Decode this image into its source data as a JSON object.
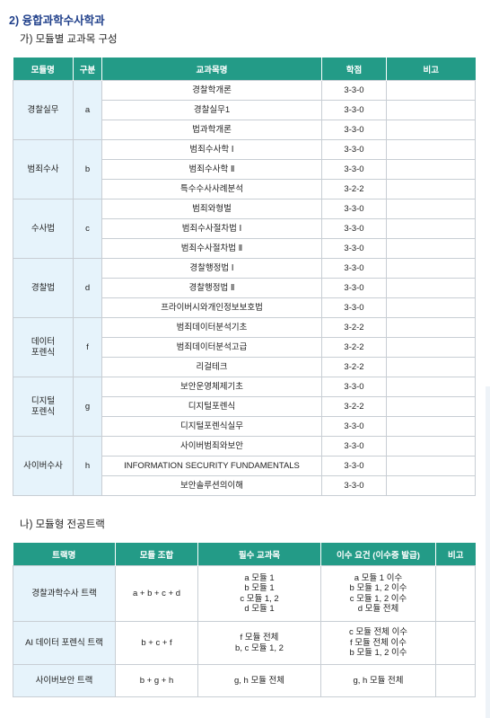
{
  "section_title": "2) 융합과학수사학과",
  "part_a": {
    "title": "가) 모듈별 교과목 구성",
    "headers": [
      "모듈명",
      "구분",
      "교과목명",
      "학점",
      "비고"
    ],
    "modules": [
      {
        "name": "경찰실무",
        "code": "a",
        "courses": [
          {
            "title": "경찰학개론",
            "credit": "3-3-0"
          },
          {
            "title": "경찰실무1",
            "credit": "3-3-0"
          },
          {
            "title": "법과학개론",
            "credit": "3-3-0"
          }
        ]
      },
      {
        "name": "범죄수사",
        "code": "b",
        "courses": [
          {
            "title": "범죄수사학 Ⅰ",
            "credit": "3-3-0"
          },
          {
            "title": "범죄수사학 Ⅱ",
            "credit": "3-3-0"
          },
          {
            "title": "특수수사사례분석",
            "credit": "3-2-2"
          }
        ]
      },
      {
        "name": "수사법",
        "code": "c",
        "courses": [
          {
            "title": "범죄와형벌",
            "credit": "3-3-0"
          },
          {
            "title": "범죄수사절차법 Ⅰ",
            "credit": "3-3-0"
          },
          {
            "title": "범죄수사절차법 Ⅱ",
            "credit": "3-3-0"
          }
        ]
      },
      {
        "name": "경찰법",
        "code": "d",
        "courses": [
          {
            "title": "경찰행정법 Ⅰ",
            "credit": "3-3-0"
          },
          {
            "title": "경찰행정법 Ⅱ",
            "credit": "3-3-0"
          },
          {
            "title": "프라이버시와개인정보보호법",
            "credit": "3-3-0"
          }
        ]
      },
      {
        "name": "데이터\n포렌식",
        "code": "f",
        "courses": [
          {
            "title": "범죄데이터분석기초",
            "credit": "3-2-2"
          },
          {
            "title": "범죄데이터분석고급",
            "credit": "3-2-2"
          },
          {
            "title": "리걸테크",
            "credit": "3-2-2"
          }
        ]
      },
      {
        "name": "디지털\n포렌식",
        "code": "g",
        "courses": [
          {
            "title": "보안운영체제기초",
            "credit": "3-3-0"
          },
          {
            "title": "디지털포렌식",
            "credit": "3-2-2"
          },
          {
            "title": "디지털포렌식실무",
            "credit": "3-3-0"
          }
        ]
      },
      {
        "name": "사이버수사",
        "code": "h",
        "courses": [
          {
            "title": "사이버범죄와보안",
            "credit": "3-3-0"
          },
          {
            "title": "INFORMATION SECURITY FUNDAMENTALS",
            "credit": "3-3-0"
          },
          {
            "title": "보안솔루션의이해",
            "credit": "3-3-0"
          }
        ]
      }
    ]
  },
  "part_b": {
    "title": "나) 모듈형 전공트랙",
    "headers": [
      "트랙명",
      "모듈 조합",
      "필수 교과목",
      "이수 요건 (이수증 발급)",
      "비고"
    ],
    "tracks": [
      {
        "name": "경찰과학수사 트랙",
        "combo": "a + b + c + d",
        "required": [
          "a 모듈 1",
          "b 모듈 1",
          "c 모듈 1, 2",
          "d 모듈 1"
        ],
        "requirement": [
          "a 모듈 1 이수",
          "b 모듈 1, 2 이수",
          "c 모듈 1, 2 이수",
          "d 모듈 전체"
        ]
      },
      {
        "name": "AI 데이터 포렌식 트랙",
        "combo": "b + c + f",
        "required": [
          "f 모듈 전체",
          "b, c 모듈 1, 2"
        ],
        "requirement": [
          "c 모듈 전체 이수",
          "f 모듈 전체 이수",
          "b 모듈 1, 2 이수"
        ]
      },
      {
        "name": "사이버보안 트랙",
        "combo": "b + g + h",
        "required": [
          "g, h 모듈 전체"
        ],
        "requirement": [
          "g, h 모듈 전체"
        ]
      }
    ]
  },
  "colors": {
    "header_bg": "#239b87",
    "module_bg": "#e6f3fb",
    "heading": "#1f3f8a"
  }
}
